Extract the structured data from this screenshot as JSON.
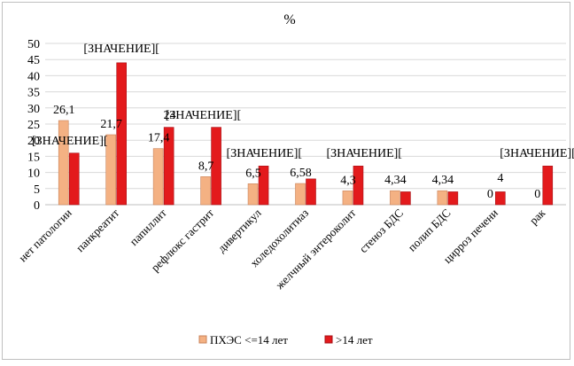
{
  "chart_data": {
    "type": "bar",
    "title": "%",
    "categories": [
      "нет патологии",
      "панкреатит",
      "папиллит",
      "рефлюкс гастрит",
      "дивертикул",
      "холедохолитиаз",
      "желчный энтероколит",
      "стеноз БДС",
      "полип БДС",
      "цирроз печени",
      "рак"
    ],
    "series": [
      {
        "name": "ПХЭС <=14 лет",
        "color": "#f4b183",
        "values": [
          26.1,
          21.7,
          17.4,
          8.7,
          6.5,
          6.58,
          4.3,
          4.34,
          4.34,
          0,
          0
        ],
        "labels": [
          "26,1",
          "21,7",
          "17,4",
          "8,7",
          "6,5",
          "6,58",
          "4,3",
          "4,34",
          "4,34",
          "0",
          "0"
        ]
      },
      {
        "name": ">14 лет",
        "color": "#e31a1c",
        "values": [
          16,
          44,
          24,
          24,
          12,
          8,
          12,
          4,
          4,
          4,
          12
        ],
        "labels": [
          "[ЗНАЧЕНИЕ][",
          "[ЗНАЧЕНИЕ][",
          "[ЗНАЧЕНИЕ][",
          "",
          "[ЗНАЧЕНИЕ][",
          "",
          "[ЗНАЧЕНИЕ][",
          "",
          "",
          "4",
          "[ЗНАЧЕНИЕ]["
        ]
      }
    ],
    "overlay_labels": [
      {
        "text": "24",
        "category_index": 2
      }
    ],
    "ylim": [
      0,
      50
    ],
    "yticks": [
      0,
      5,
      10,
      15,
      20,
      25,
      30,
      35,
      40,
      45,
      50
    ],
    "grid": true,
    "legend": "bottom"
  }
}
